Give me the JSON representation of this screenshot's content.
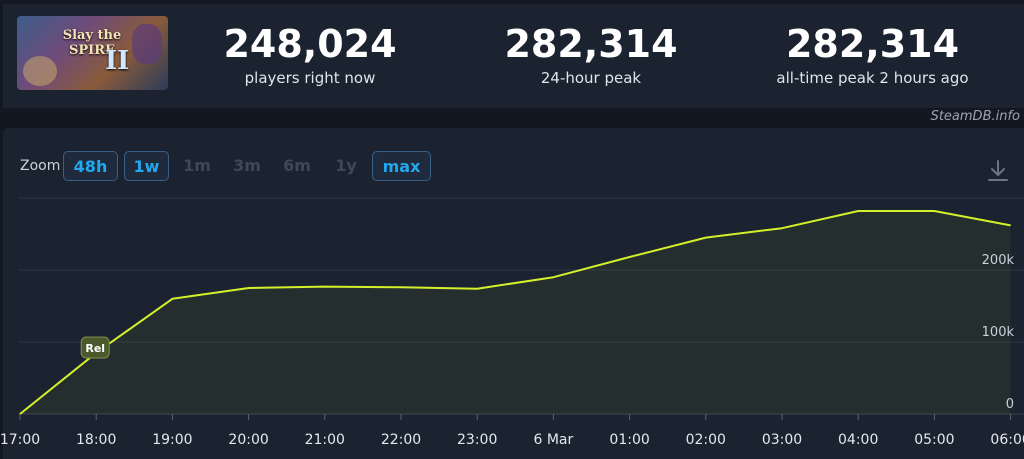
{
  "header": {
    "game_image": {
      "alt_title_line1": "Slay the",
      "alt_title_line2": "SPIRE",
      "numeral": "II"
    },
    "stats": [
      {
        "value": "248,024",
        "label": "players right now"
      },
      {
        "value": "282,314",
        "label": "24-hour peak"
      },
      {
        "value": "282,314",
        "label": "all-time peak 2 hours ago"
      }
    ],
    "credit": "SteamDB.info"
  },
  "toolbar": {
    "zoom_label": "Zoom",
    "zoom_options": [
      {
        "label": "48h",
        "state": "active"
      },
      {
        "label": "1w",
        "state": "active"
      },
      {
        "label": "1m",
        "state": "disabled"
      },
      {
        "label": "3m",
        "state": "disabled"
      },
      {
        "label": "6m",
        "state": "disabled"
      },
      {
        "label": "1y",
        "state": "disabled"
      },
      {
        "label": "max",
        "state": "active"
      }
    ],
    "download_icon": "download-icon"
  },
  "colors": {
    "line": "#d4f02a",
    "accent": "#22a8ee",
    "grid": "#2c3444",
    "marker_bg": "#4b5a2c"
  },
  "chart_data": {
    "type": "line",
    "title": "",
    "xlabel": "",
    "ylabel": "",
    "x_ticks": [
      "17:00",
      "18:00",
      "19:00",
      "20:00",
      "21:00",
      "22:00",
      "23:00",
      "6 Mar",
      "01:00",
      "02:00",
      "03:00",
      "04:00",
      "05:00",
      "06:00"
    ],
    "y_ticks": [
      "0",
      "100k",
      "200k"
    ],
    "ylim": [
      0,
      300000
    ],
    "grid": true,
    "series": [
      {
        "x": [
          "17:00",
          "18:00",
          "19:00",
          "20:00",
          "21:00",
          "22:00",
          "23:00",
          "6 Mar",
          "01:00",
          "02:00",
          "03:00",
          "04:00",
          "05:00",
          "06:00"
        ],
        "values": [
          0,
          85000,
          160000,
          175000,
          177000,
          176000,
          174000,
          190000,
          218000,
          245000,
          258000,
          282000,
          282000,
          262000
        ]
      }
    ],
    "annotations": [
      {
        "label": "Rel",
        "x": "18:00",
        "y": 100000
      }
    ]
  }
}
